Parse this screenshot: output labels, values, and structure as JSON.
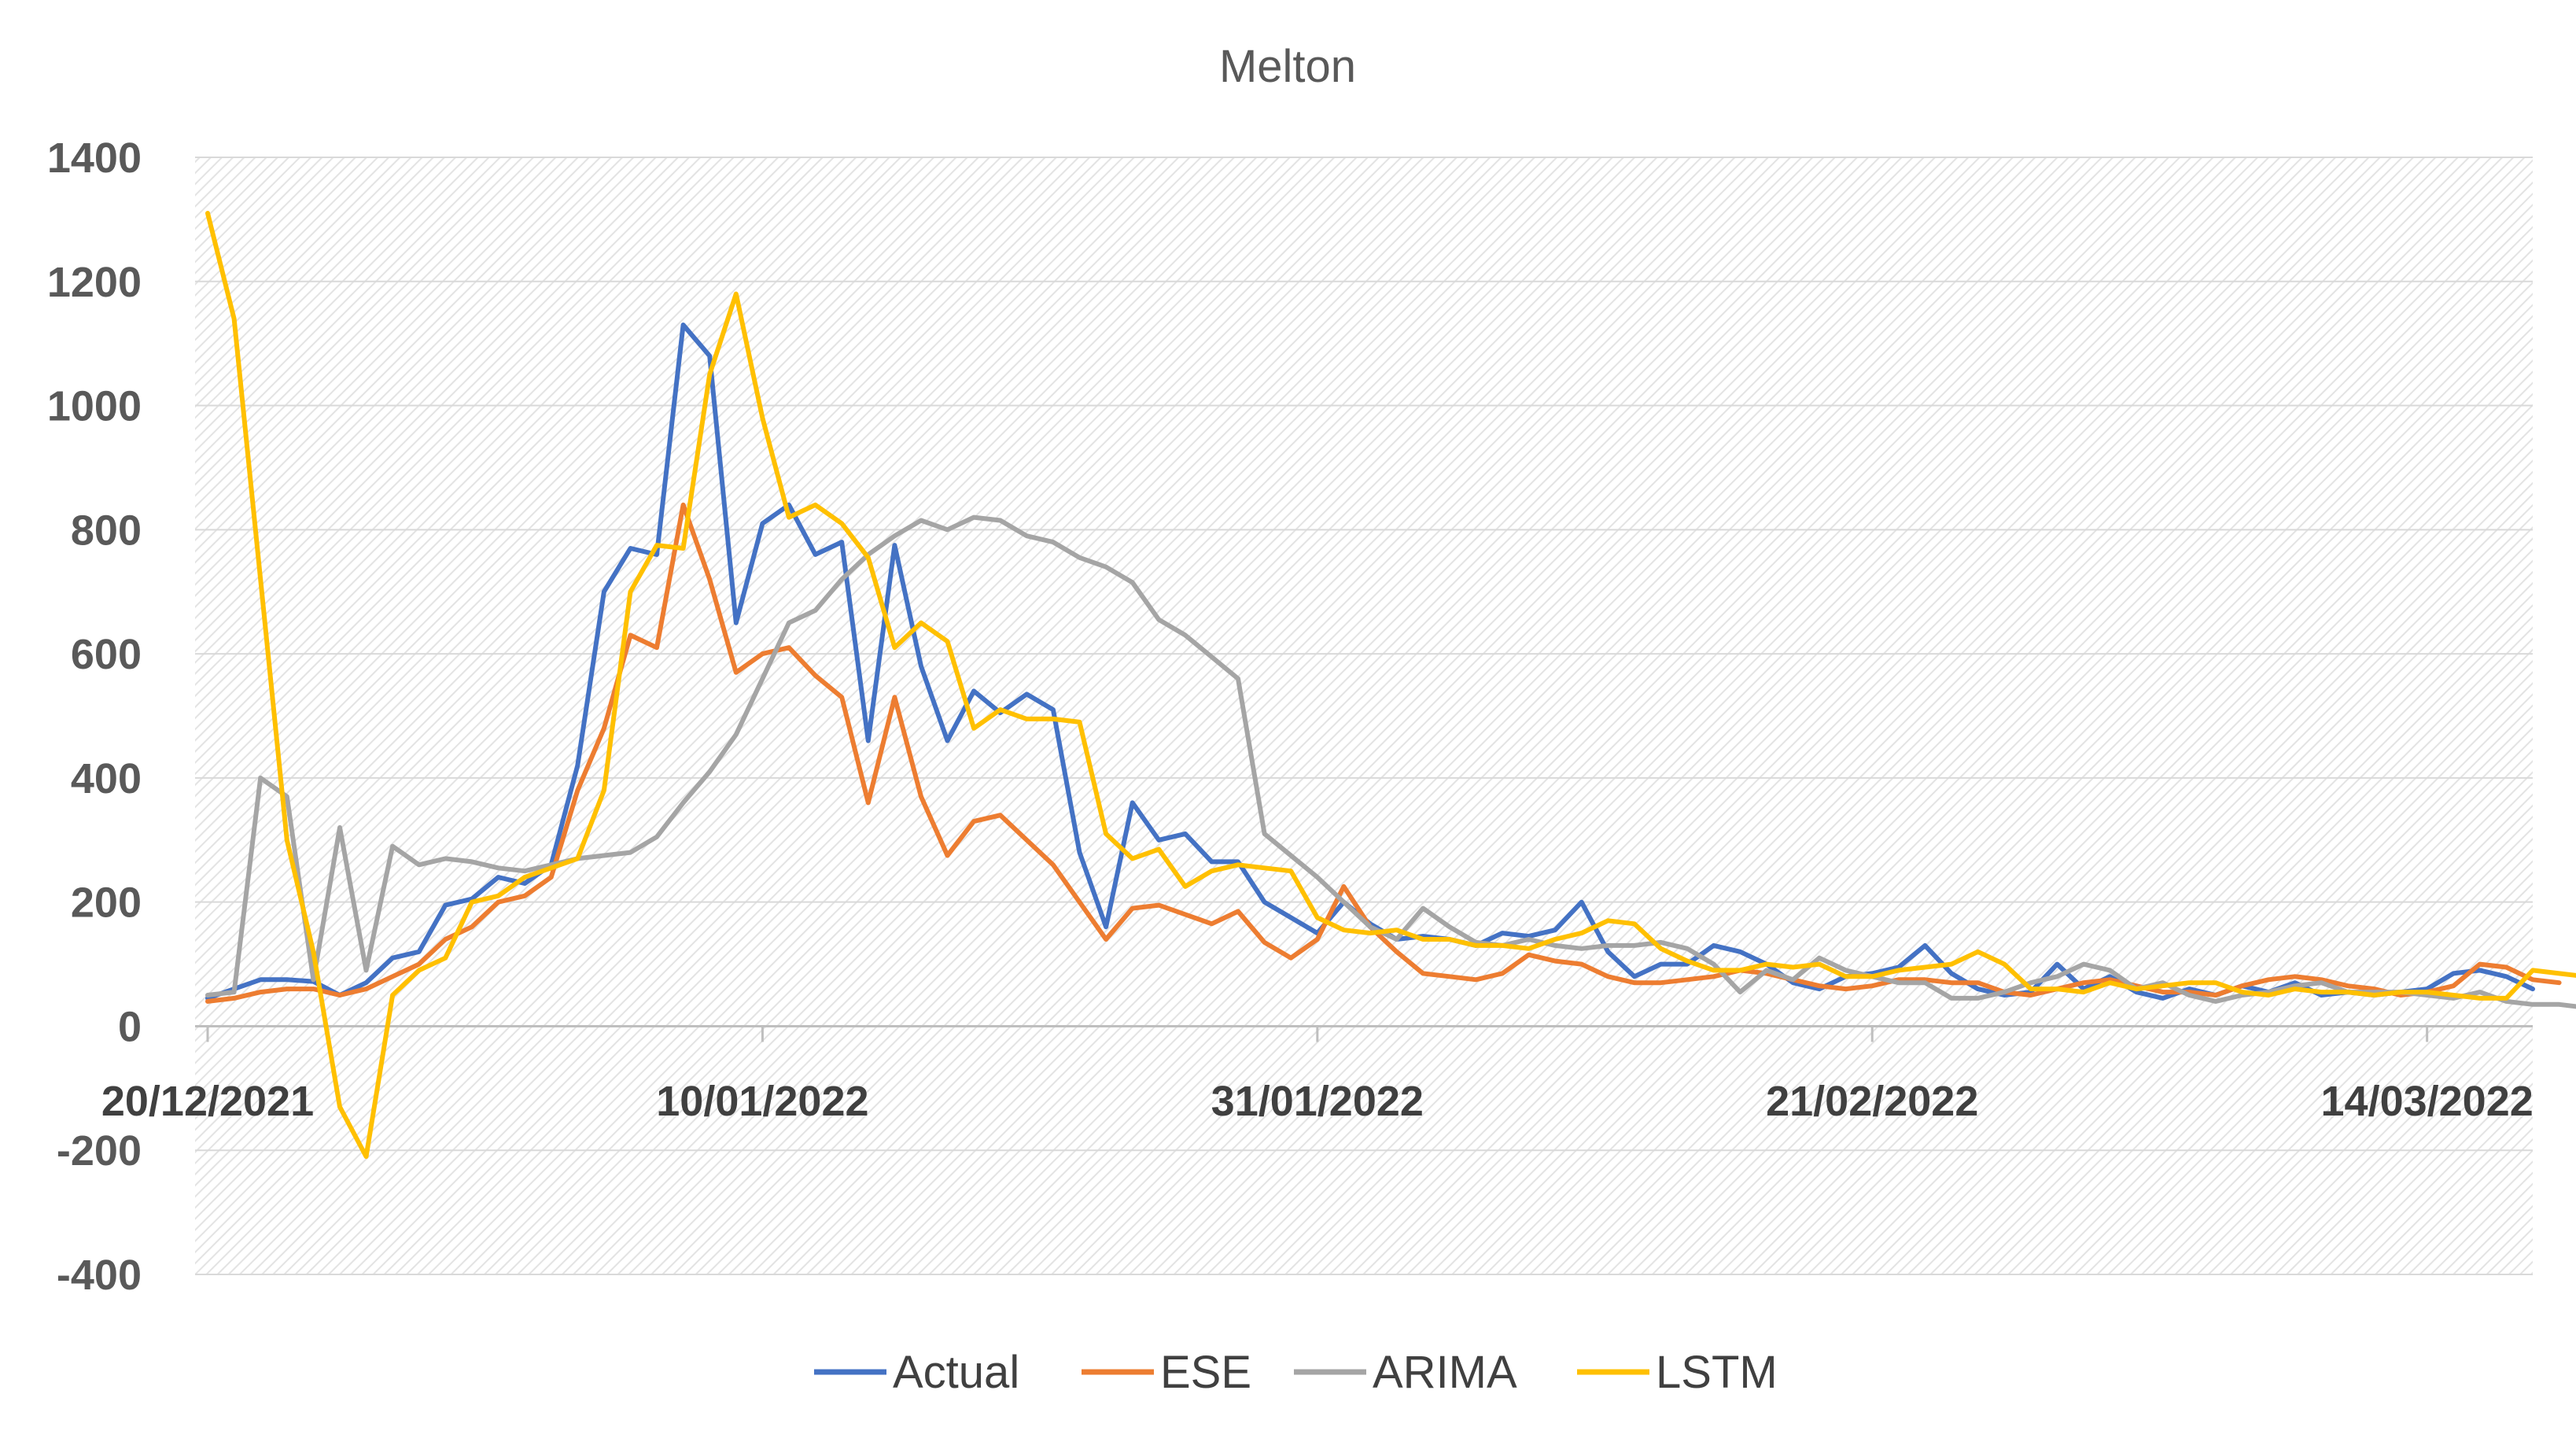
{
  "chart_data": {
    "type": "line",
    "title": "Melton",
    "xlabel": "",
    "ylabel": "",
    "ylim": [
      -400,
      1400
    ],
    "yticks": [
      -400,
      -200,
      0,
      200,
      400,
      600,
      800,
      1000,
      1200,
      1400
    ],
    "grid": true,
    "legend": "bottom",
    "x_start": "20/12/2021",
    "x_tick_labels": [
      "20/12/2021",
      "10/01/2022",
      "31/01/2022",
      "21/02/2022",
      "14/03/2022"
    ],
    "x_tick_index": [
      0,
      21,
      42,
      63,
      84
    ],
    "series": [
      {
        "name": "Actual",
        "color": "#4472c4",
        "values": [
          45,
          60,
          75,
          75,
          72,
          50,
          70,
          110,
          120,
          195,
          205,
          240,
          230,
          260,
          420,
          700,
          770,
          760,
          1130,
          1080,
          650,
          810,
          840,
          760,
          780,
          460,
          775,
          580,
          460,
          540,
          505,
          535,
          510,
          280,
          160,
          360,
          300,
          310,
          265,
          265,
          200,
          175,
          150,
          200,
          165,
          140,
          145,
          140,
          130,
          150,
          145,
          155,
          200,
          120,
          80,
          100,
          100,
          130,
          120,
          100,
          70,
          60,
          80,
          85,
          95,
          130,
          85,
          60,
          50,
          55,
          100,
          60,
          80,
          55,
          45,
          60,
          50,
          65,
          55,
          70,
          50,
          55,
          50,
          55,
          60,
          85,
          90,
          80,
          60
        ]
      },
      {
        "name": "ESE",
        "color": "#ed7d31",
        "values": [
          40,
          45,
          55,
          60,
          60,
          50,
          60,
          80,
          100,
          140,
          160,
          200,
          210,
          240,
          380,
          480,
          630,
          610,
          840,
          720,
          570,
          600,
          610,
          565,
          530,
          360,
          530,
          370,
          275,
          330,
          340,
          300,
          260,
          200,
          140,
          190,
          195,
          180,
          165,
          185,
          135,
          110,
          140,
          225,
          160,
          120,
          85,
          80,
          75,
          85,
          115,
          105,
          100,
          80,
          70,
          70,
          75,
          80,
          90,
          85,
          75,
          65,
          60,
          65,
          75,
          75,
          70,
          70,
          55,
          50,
          60,
          70,
          75,
          65,
          55,
          55,
          50,
          65,
          75,
          80,
          75,
          65,
          60,
          50,
          55,
          65,
          100,
          95,
          75,
          70
        ]
      },
      {
        "name": "ARIMA",
        "color": "#a5a5a5",
        "values": [
          50,
          55,
          400,
          370,
          75,
          320,
          90,
          290,
          260,
          270,
          265,
          255,
          250,
          260,
          270,
          275,
          280,
          305,
          360,
          410,
          470,
          560,
          650,
          670,
          720,
          760,
          790,
          815,
          800,
          820,
          815,
          790,
          780,
          755,
          740,
          715,
          655,
          630,
          595,
          560,
          310,
          275,
          240,
          200,
          160,
          140,
          190,
          160,
          135,
          130,
          140,
          130,
          125,
          130,
          130,
          135,
          125,
          100,
          55,
          90,
          75,
          110,
          90,
          80,
          70,
          70,
          45,
          45,
          55,
          70,
          80,
          100,
          90,
          60,
          70,
          50,
          40,
          50,
          55,
          65,
          70,
          55,
          55,
          55,
          50,
          45,
          55,
          40,
          35,
          35,
          30,
          30
        ]
      },
      {
        "name": "LSTM",
        "color": "#ffc000",
        "values": [
          1310,
          1140,
          720,
          300,
          120,
          -130,
          -210,
          50,
          90,
          110,
          200,
          210,
          240,
          255,
          270,
          380,
          700,
          775,
          770,
          1050,
          1180,
          980,
          820,
          840,
          810,
          755,
          610,
          650,
          620,
          480,
          510,
          495,
          495,
          490,
          310,
          270,
          285,
          225,
          250,
          260,
          255,
          250,
          175,
          155,
          150,
          155,
          140,
          140,
          130,
          130,
          125,
          140,
          150,
          170,
          165,
          125,
          105,
          90,
          90,
          100,
          95,
          100,
          80,
          80,
          90,
          95,
          100,
          120,
          100,
          60,
          60,
          55,
          70,
          60,
          65,
          70,
          70,
          55,
          50,
          60,
          55,
          55,
          50,
          55,
          55,
          50,
          45,
          45,
          90,
          85,
          80
        ]
      }
    ]
  }
}
